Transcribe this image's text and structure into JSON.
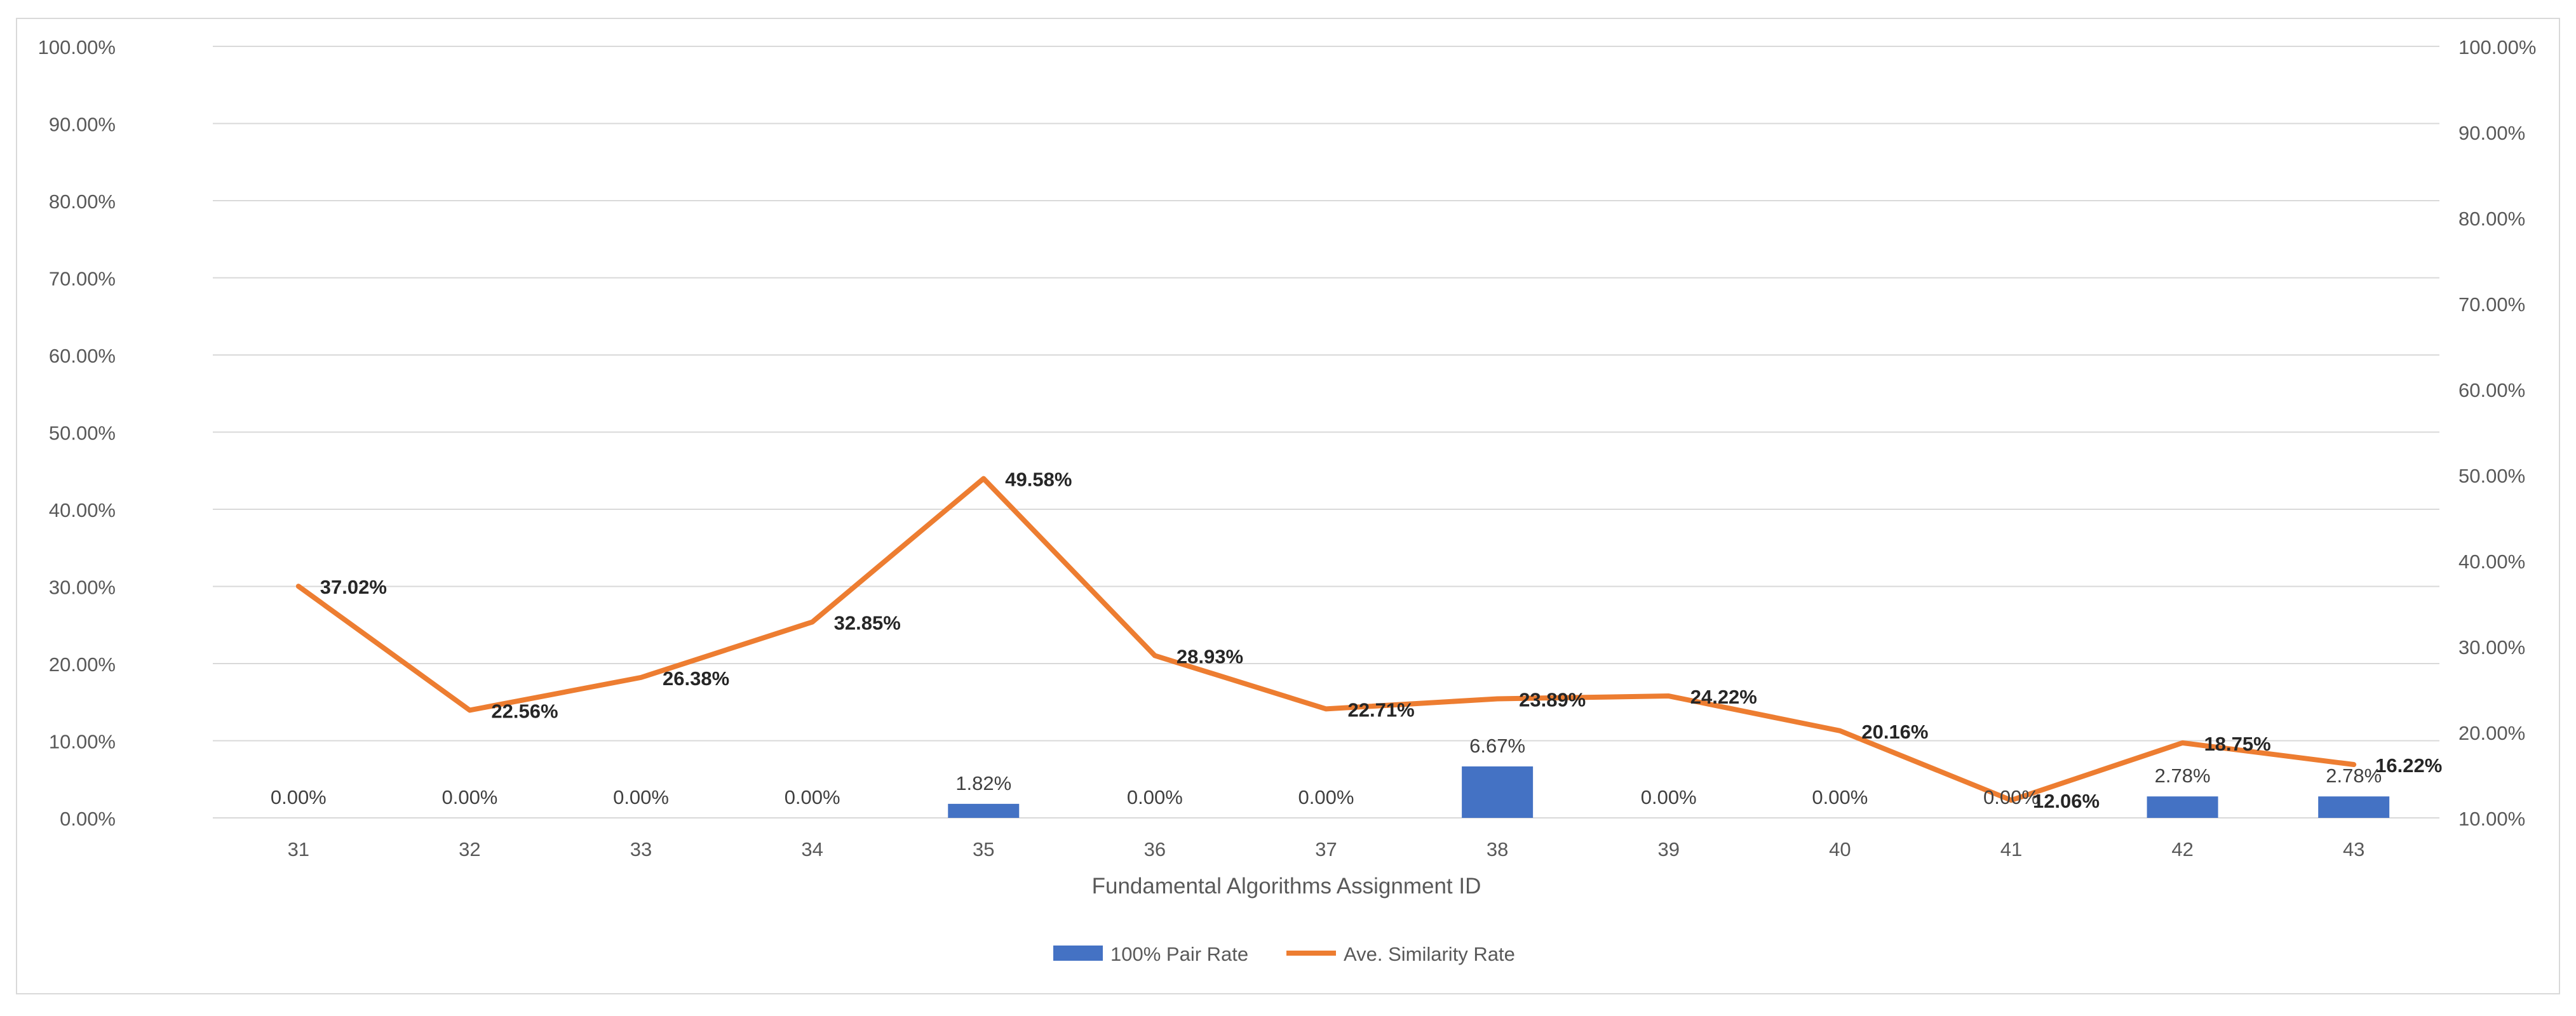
{
  "chart_data": {
    "type": "bar+line",
    "title": "",
    "xlabel": "Fundamental Algorithms Assignment ID",
    "categories": [
      "31",
      "32",
      "33",
      "34",
      "35",
      "36",
      "37",
      "38",
      "39",
      "40",
      "41",
      "42",
      "43"
    ],
    "series": [
      {
        "name": "100% Pair Rate",
        "type": "bar",
        "axis": "left",
        "color": "#4472c4",
        "values": [
          0.0,
          0.0,
          0.0,
          0.0,
          1.82,
          0.0,
          0.0,
          6.67,
          0.0,
          0.0,
          0.0,
          2.78,
          2.78
        ],
        "labels": [
          "0.00%",
          "0.00%",
          "0.00%",
          "0.00%",
          "1.82%",
          "0.00%",
          "0.00%",
          "6.67%",
          "0.00%",
          "0.00%",
          "0.00%",
          "2.78%",
          "2.78%"
        ]
      },
      {
        "name": "Ave. Similarity Rate",
        "type": "line",
        "axis": "right",
        "color": "#ed7d31",
        "values": [
          37.02,
          22.56,
          26.38,
          32.85,
          49.58,
          28.93,
          22.71,
          23.89,
          24.22,
          20.16,
          12.06,
          18.75,
          16.22
        ],
        "labels": [
          "37.02%",
          "22.56%",
          "26.38%",
          "32.85%",
          "49.58%",
          "28.93%",
          "22.71%",
          "23.89%",
          "24.22%",
          "20.16%",
          "12.06%",
          "18.75%",
          "16.22%"
        ]
      }
    ],
    "left_axis": {
      "ylim": [
        0,
        100
      ],
      "ticks": [
        0,
        10,
        20,
        30,
        40,
        50,
        60,
        70,
        80,
        90,
        100
      ],
      "tick_labels": [
        "0.00%",
        "10.00%",
        "20.00%",
        "30.00%",
        "40.00%",
        "50.00%",
        "60.00%",
        "70.00%",
        "80.00%",
        "90.00%",
        "100.00%"
      ]
    },
    "right_axis": {
      "ylim": [
        10,
        100
      ],
      "ticks": [
        10,
        20,
        30,
        40,
        50,
        60,
        70,
        80,
        90,
        100
      ],
      "tick_labels": [
        "10.00%",
        "20.00%",
        "30.00%",
        "40.00%",
        "50.00%",
        "60.00%",
        "70.00%",
        "80.00%",
        "90.00%",
        "100.00%"
      ]
    },
    "grid": true,
    "legend_position": "bottom-center",
    "gridline_color": "#d9d9d9"
  }
}
